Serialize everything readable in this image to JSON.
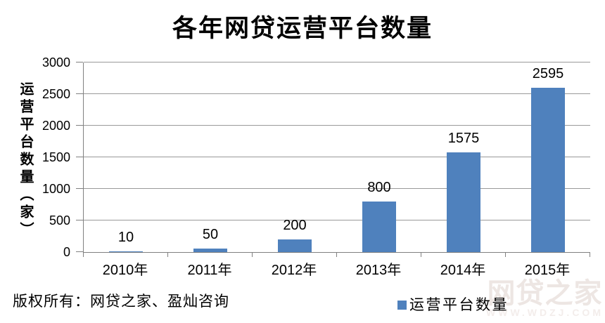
{
  "title": "各年网贷运营平台数量",
  "y_axis": {
    "title": "运营平台数量（家）"
  },
  "footer": {
    "copyright": "版权所有：网贷之家、盈灿咨询"
  },
  "legend": {
    "label": "运营平台数量"
  },
  "watermark": {
    "logo": "网贷之家",
    "url": "WWW.WDZJ.COM"
  },
  "colors": {
    "bar": "#4F81BD",
    "gridline": "#999999",
    "axis": "#808080",
    "text": "#000000",
    "watermark_logo": "#EDE6E3",
    "watermark_url": "#F3EDEB",
    "background": "#FFFFFF"
  },
  "chart_data": {
    "type": "bar",
    "title": "各年网贷运营平台数量",
    "categories": [
      "2010年",
      "2011年",
      "2012年",
      "2013年",
      "2014年",
      "2015年"
    ],
    "values": [
      10,
      50,
      200,
      800,
      1575,
      2595
    ],
    "series_name": "运营平台数量",
    "xlabel": "",
    "ylabel": "运营平台数量（家）",
    "ylim": [
      0,
      3000
    ],
    "yticks": [
      0,
      500,
      1000,
      1500,
      2000,
      2500,
      3000
    ],
    "grid": true,
    "data_labels": true,
    "legend_position": "bottom"
  }
}
